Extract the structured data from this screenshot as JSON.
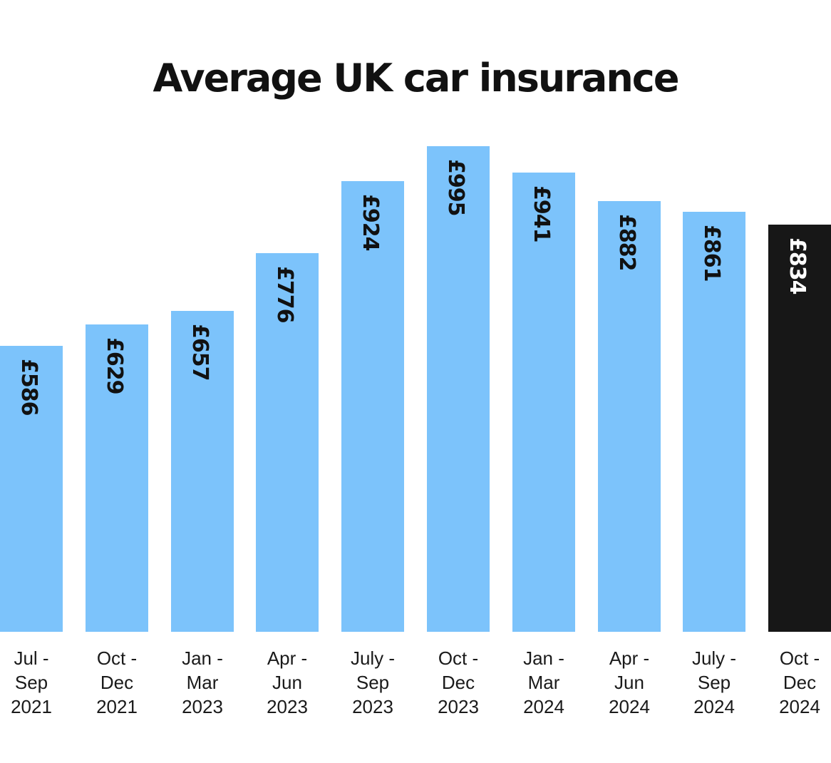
{
  "title": "Average UK car insurance",
  "chart_data": {
    "type": "bar",
    "title": "Average UK car insurance",
    "xlabel": "",
    "ylabel": "",
    "categories": [
      "Jul - Sep 2021",
      "Oct - Dec 2021",
      "Jan - Mar 2023",
      "Apr - Jun 2023",
      "July - Sep 2023",
      "Oct - Dec 2023",
      "Jan - Mar 2024",
      "Apr - Jun 2024",
      "July - Sep 2024",
      "Oct - Dec 2024"
    ],
    "category_lines": [
      [
        "Jul -",
        "Sep",
        "2021"
      ],
      [
        "Oct -",
        "Dec",
        "2021"
      ],
      [
        "Jan -",
        "Mar",
        "2023"
      ],
      [
        "Apr -",
        "Jun",
        "2023"
      ],
      [
        "July -",
        "Sep",
        "2023"
      ],
      [
        "Oct -",
        "Dec",
        "2023"
      ],
      [
        "Jan -",
        "Mar",
        "2024"
      ],
      [
        "Apr -",
        "Jun",
        "2024"
      ],
      [
        "July -",
        "Sep",
        "2024"
      ],
      [
        "Oct -",
        "Dec",
        "2024"
      ]
    ],
    "values": [
      586,
      629,
      657,
      776,
      924,
      995,
      941,
      882,
      861,
      834
    ],
    "value_labels": [
      "£586",
      "£629",
      "£657",
      "£776",
      "£924",
      "£995",
      "£941",
      "£882",
      "£861",
      "£834"
    ],
    "highlight_index": 9,
    "grid": false,
    "legend": "none",
    "colors": {
      "bar": "#7cc3fb",
      "highlight": "#171717"
    }
  }
}
